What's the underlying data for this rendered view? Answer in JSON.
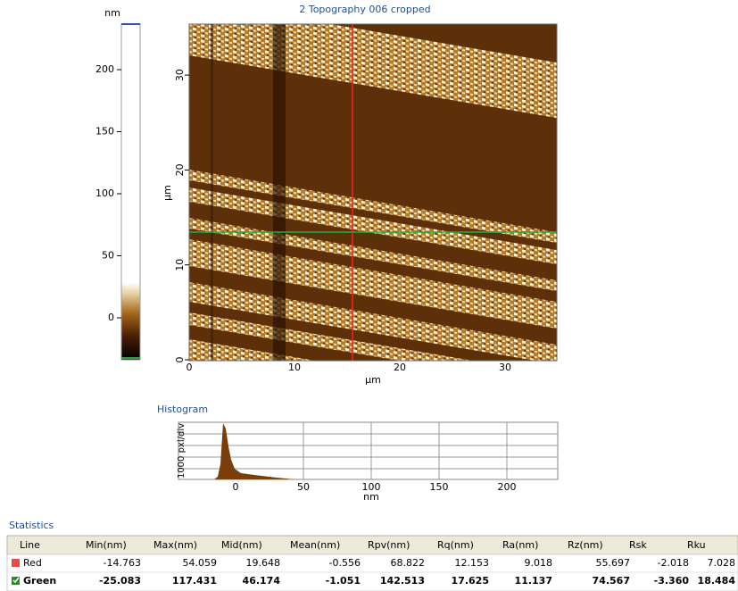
{
  "image": {
    "title": "2 Topography 006 cropped",
    "colorbar": {
      "unit": "nm",
      "ticks": [
        200,
        150,
        100,
        50,
        0
      ]
    },
    "y_axis": {
      "label": "µm",
      "ticks": [
        30,
        20,
        10,
        0
      ]
    },
    "x_axis": {
      "label": "µm",
      "ticks": [
        0,
        10,
        20,
        30
      ]
    }
  },
  "histogram": {
    "title": "Histogram",
    "y_label": "1000 pxl/div",
    "x_label": "nm",
    "x_ticks": [
      0,
      50,
      100,
      150,
      200
    ]
  },
  "statistics": {
    "title": "Statistics",
    "columns": [
      "Line",
      "Min(nm)",
      "Max(nm)",
      "Mid(nm)",
      "Mean(nm)",
      "Rpv(nm)",
      "Rq(nm)",
      "Ra(nm)",
      "Rz(nm)",
      "Rsk",
      "Rku"
    ],
    "rows": [
      [
        "Red",
        "-14.763",
        "54.059",
        "19.648",
        "-0.556",
        "68.822",
        "12.153",
        "9.018",
        "55.697",
        "-2.018",
        "7.028"
      ],
      [
        "Green",
        "-25.083",
        "117.431",
        "46.174",
        "-1.051",
        "142.513",
        "17.625",
        "11.137",
        "74.567",
        "-3.360",
        "18.484"
      ]
    ]
  }
}
